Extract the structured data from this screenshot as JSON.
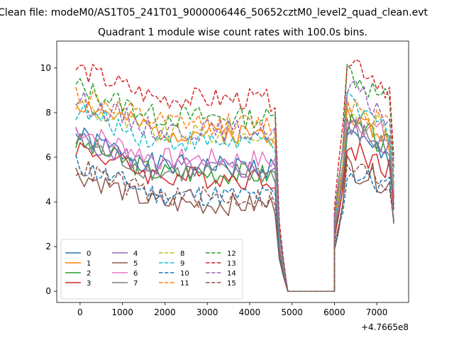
{
  "chart_data": {
    "type": "line",
    "suptitle": "Clean file: modeM0/AS1T05_241T01_9000006446_50652cztM0_level2_quad_clean.evt",
    "title": "Quadrant 1 module wise count rates with 100.0s bins.",
    "xlabel": "",
    "ylabel": "",
    "x_offset_label": "+4.7665e8",
    "xlim": [
      -550,
      7750
    ],
    "ylim": [
      -0.5,
      11.2
    ],
    "xticks": [
      0,
      1000,
      2000,
      3000,
      4000,
      5000,
      6000,
      7000
    ],
    "xtick_labels": [
      "0",
      "1000",
      "2000",
      "3000",
      "4000",
      "5000",
      "6000",
      "7000"
    ],
    "yticks": [
      0,
      2,
      4,
      6,
      8,
      10
    ],
    "ytick_labels": [
      "0",
      "2",
      "4",
      "6",
      "8",
      "10"
    ],
    "grid": false,
    "legend_location": "lower-left",
    "legend_columns": 4,
    "segments": {
      "active1": {
        "start": -100,
        "end": 4600,
        "step": 100
      },
      "falloff": [
        [
          4700,
          0.45
        ],
        [
          4800,
          0.2
        ],
        [
          4900,
          0.0
        ]
      ],
      "gap": [
        [
          4900,
          0.0
        ],
        [
          6000,
          0.0
        ]
      ],
      "rise": [
        [
          6000,
          0.45
        ],
        [
          6100,
          0.65
        ],
        [
          6200,
          0.85
        ],
        [
          6300,
          1.0
        ]
      ],
      "active2": {
        "start": 6300,
        "end": 7400,
        "step": 100
      }
    },
    "series": [
      {
        "name": "0",
        "style": "solid",
        "color": "#1f77b4",
        "level": 5.7,
        "drop": 5.55,
        "seed": 1
      },
      {
        "name": "1",
        "style": "solid",
        "color": "#ff7f0e",
        "level": 7.2,
        "drop": 6.3,
        "seed": 2
      },
      {
        "name": "2",
        "style": "solid",
        "color": "#2ca02c",
        "level": 5.4,
        "drop": 6.0,
        "seed": 3
      },
      {
        "name": "3",
        "style": "solid",
        "color": "#d62728",
        "level": 5.2,
        "drop": 5.2,
        "seed": 4
      },
      {
        "name": "4",
        "style": "solid",
        "color": "#9467bd",
        "level": 5.6,
        "drop": 6.1,
        "seed": 5
      },
      {
        "name": "5",
        "style": "solid",
        "color": "#8c564b",
        "level": 4.0,
        "drop": 4.5,
        "seed": 6
      },
      {
        "name": "6",
        "style": "solid",
        "color": "#e377c2",
        "level": 6.0,
        "drop": 6.4,
        "seed": 7
      },
      {
        "name": "7",
        "style": "solid",
        "color": "#7f7f7f",
        "level": 5.4,
        "drop": 5.9,
        "seed": 8
      },
      {
        "name": "8",
        "style": "dashed",
        "color": "#bcbd22",
        "level": 7.1,
        "drop": 6.6,
        "seed": 9
      },
      {
        "name": "9",
        "style": "dashed",
        "color": "#17becf",
        "level": 6.8,
        "drop": 6.7,
        "seed": 10
      },
      {
        "name": "10",
        "style": "dashed",
        "color": "#1f77b4",
        "level": 4.4,
        "drop": 4.3,
        "seed": 11
      },
      {
        "name": "11",
        "style": "dashed",
        "color": "#ff7f0e",
        "level": 7.6,
        "drop": 6.9,
        "seed": 12
      },
      {
        "name": "12",
        "style": "dashed",
        "color": "#2ca02c",
        "level": 7.9,
        "drop": 7.9,
        "seed": 13
      },
      {
        "name": "13",
        "style": "dashed",
        "color": "#d62728",
        "level": 8.7,
        "drop": 8.5,
        "seed": 14
      },
      {
        "name": "14",
        "style": "dashed",
        "color": "#9467bd",
        "level": 7.3,
        "drop": 7.3,
        "seed": 15
      },
      {
        "name": "15",
        "style": "dashed",
        "color": "#8c564b",
        "level": 4.3,
        "drop": 4.5,
        "seed": 16
      }
    ]
  }
}
